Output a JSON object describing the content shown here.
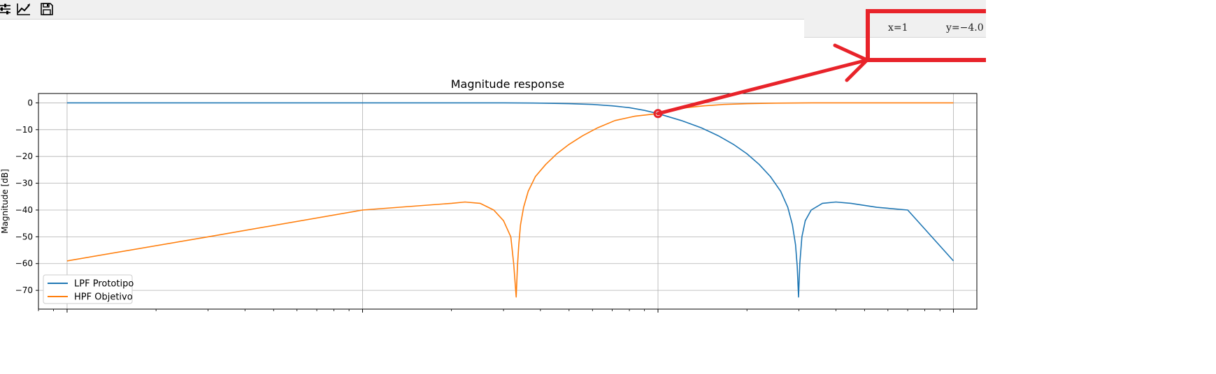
{
  "toolbar": {
    "buttons": [
      {
        "icon": "sliders-icon"
      },
      {
        "icon": "chart-line-icon"
      },
      {
        "icon": "save-icon"
      }
    ]
  },
  "coords": {
    "x": "x=1",
    "y": "y=−4.0"
  },
  "colors": {
    "lpf": "#1f77b4",
    "hpf": "#ff7f0e",
    "annotation": "#e8232a"
  },
  "chart_data": {
    "type": "line",
    "title": "Magnitude response",
    "xlabel": "",
    "ylabel": "Magnitude [dB]",
    "xscale": "log",
    "xlim": [
      0.008,
      12
    ],
    "ylim": [
      -77,
      3.5
    ],
    "yticks": [
      0,
      -10,
      -20,
      -30,
      -40,
      -50,
      -60,
      -70
    ],
    "ytick_labels": [
      "0",
      "−10",
      "−20",
      "−30",
      "−40",
      "−50",
      "−60",
      "−70"
    ],
    "xticks_major": [
      0.01,
      0.1,
      1,
      10
    ],
    "grid": true,
    "legend": "lower-left",
    "highlight_point": {
      "x": 1,
      "y": -4.0
    },
    "series": [
      {
        "name": "LPF Prototipo",
        "color": "#1f77b4",
        "x": [
          0.01,
          0.03,
          0.1,
          0.2,
          0.3,
          0.4,
          0.5,
          0.6,
          0.7,
          0.8,
          0.9,
          1.0,
          1.2,
          1.4,
          1.6,
          1.8,
          2.0,
          2.2,
          2.4,
          2.6,
          2.75,
          2.85,
          2.92,
          2.96,
          2.99,
          3.02,
          3.07,
          3.15,
          3.3,
          3.6,
          4.0,
          4.5,
          5.5,
          7,
          10
        ],
        "y": [
          0,
          0,
          0,
          0,
          0,
          -0.1,
          -0.3,
          -0.6,
          -1.1,
          -1.8,
          -2.8,
          -4.0,
          -6.6,
          -9.3,
          -12.3,
          -15.5,
          -19.0,
          -23.0,
          -27.5,
          -33.0,
          -39.0,
          -45.5,
          -53.0,
          -61.0,
          -72.5,
          -60.0,
          -50.0,
          -44.0,
          -40.0,
          -37.5,
          -37.0,
          -37.5,
          -39.0,
          -40.0,
          -59.0
        ]
      },
      {
        "name": "HPF Objetivo",
        "color": "#ff7f0e",
        "x": [
          0.01,
          0.03,
          0.1,
          0.2,
          0.2222,
          0.25,
          0.278,
          0.3,
          0.3175,
          0.3247,
          0.3311,
          0.3344,
          0.3378,
          0.3425,
          0.3509,
          0.3636,
          0.3846,
          0.4167,
          0.4545,
          0.5,
          0.5556,
          0.625,
          0.7143,
          0.8333,
          1.0,
          1.1111,
          1.25,
          1.4286,
          1.6667,
          2.0,
          2.5,
          3.3333,
          10
        ],
        "y": [
          -59.0,
          -50.0,
          -40.0,
          -37.5,
          -37.0,
          -37.5,
          -40.0,
          -44.0,
          -50.0,
          -60.0,
          -72.5,
          -61.0,
          -53.0,
          -45.5,
          -39.0,
          -33.0,
          -27.5,
          -23.0,
          -19.0,
          -15.5,
          -12.3,
          -9.3,
          -6.6,
          -5.0,
          -4.0,
          -2.8,
          -1.8,
          -1.1,
          -0.6,
          -0.3,
          -0.1,
          0,
          0
        ]
      }
    ]
  }
}
